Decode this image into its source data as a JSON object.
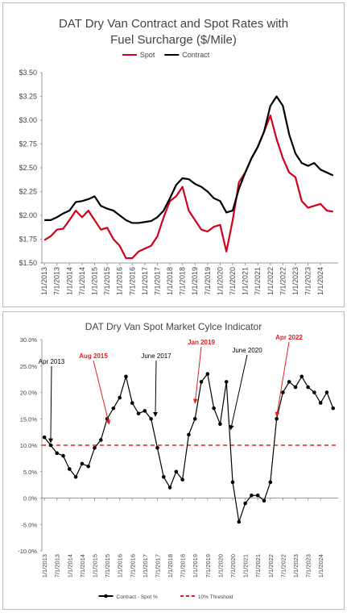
{
  "chart_data": [
    {
      "type": "line",
      "title": "DAT Dry Van Contract and Spot Rates with Fuel Surcharge ($/Mile)",
      "legend": "top",
      "grid": false,
      "x": [
        2013,
        2013.25,
        2013.5,
        2013.75,
        2014,
        2014.25,
        2014.5,
        2014.75,
        2015,
        2015.25,
        2015.5,
        2015.75,
        2016,
        2016.25,
        2016.5,
        2016.75,
        2017,
        2017.25,
        2017.5,
        2017.75,
        2018,
        2018.25,
        2018.5,
        2018.75,
        2019,
        2019.25,
        2019.5,
        2019.75,
        2020,
        2020.25,
        2020.5,
        2020.75,
        2021,
        2021.25,
        2021.5,
        2021.75,
        2022,
        2022.25,
        2022.5,
        2022.75,
        2023,
        2023.25,
        2023.5,
        2023.75,
        2024,
        2024.25,
        2024.5
      ],
      "series": [
        {
          "name": "Spot",
          "color": "#d0021b",
          "values": [
            1.74,
            1.78,
            1.85,
            1.86,
            1.95,
            2.05,
            1.98,
            2.05,
            1.95,
            1.85,
            1.87,
            1.75,
            1.68,
            1.55,
            1.55,
            1.62,
            1.65,
            1.68,
            1.78,
            1.98,
            2.15,
            2.2,
            2.3,
            2.05,
            1.95,
            1.85,
            1.83,
            1.88,
            1.9,
            1.62,
            1.95,
            2.35,
            2.45,
            2.6,
            2.72,
            2.88,
            3.05,
            2.8,
            2.6,
            2.45,
            2.4,
            2.15,
            2.08,
            2.1,
            2.12,
            2.05,
            2.04
          ]
        },
        {
          "name": "Contract",
          "color": "#000000",
          "values": [
            1.95,
            1.95,
            1.98,
            2.02,
            2.05,
            2.14,
            2.15,
            2.17,
            2.2,
            2.1,
            2.07,
            2.05,
            2.0,
            1.95,
            1.92,
            1.92,
            1.93,
            1.94,
            1.98,
            2.05,
            2.18,
            2.32,
            2.39,
            2.38,
            2.33,
            2.3,
            2.25,
            2.18,
            2.15,
            2.03,
            2.05,
            2.28,
            2.45,
            2.6,
            2.72,
            2.88,
            3.15,
            3.25,
            3.15,
            2.85,
            2.65,
            2.55,
            2.52,
            2.55,
            2.48,
            2.45,
            2.42
          ]
        }
      ],
      "xlim": [
        2012.9,
        2024.7
      ],
      "xticks": [
        {
          "value": 2013,
          "label": "1/1/2013"
        },
        {
          "value": 2013.5,
          "label": "7/1/2013"
        },
        {
          "value": 2014,
          "label": "1/1/2014"
        },
        {
          "value": 2014.5,
          "label": "7/1/2014"
        },
        {
          "value": 2015,
          "label": "1/1/2015"
        },
        {
          "value": 2015.5,
          "label": "7/1/2015"
        },
        {
          "value": 2016,
          "label": "1/1/2016"
        },
        {
          "value": 2016.5,
          "label": "7/1/2016"
        },
        {
          "value": 2017,
          "label": "1/1/2017"
        },
        {
          "value": 2017.5,
          "label": "7/1/2017"
        },
        {
          "value": 2018,
          "label": "1/1/2018"
        },
        {
          "value": 2018.5,
          "label": "7/1/2018"
        },
        {
          "value": 2019,
          "label": "1/1/2019"
        },
        {
          "value": 2019.5,
          "label": "7/1/2019"
        },
        {
          "value": 2020,
          "label": "1/1/2020"
        },
        {
          "value": 2020.5,
          "label": "7/1/2020"
        },
        {
          "value": 2021,
          "label": "1/1/2021"
        },
        {
          "value": 2021.5,
          "label": "7/1/2021"
        },
        {
          "value": 2022,
          "label": "1/1/2022"
        },
        {
          "value": 2022.5,
          "label": "7/1/2022"
        },
        {
          "value": 2023,
          "label": "1/1/2023"
        },
        {
          "value": 2023.5,
          "label": "7/1/2023"
        },
        {
          "value": 2024,
          "label": "1/1/2024"
        }
      ],
      "ylim": [
        1.5,
        3.5
      ],
      "yticks": [
        {
          "value": 1.5,
          "label": "$1.50"
        },
        {
          "value": 1.75,
          "label": "$1.75"
        },
        {
          "value": 2.0,
          "label": "$2.00"
        },
        {
          "value": 2.25,
          "label": "$2.25"
        },
        {
          "value": 2.5,
          "label": "$2.50"
        },
        {
          "value": 2.75,
          "label": "$2.75"
        },
        {
          "value": 3.0,
          "label": "$3.00"
        },
        {
          "value": 3.25,
          "label": "$3.25"
        },
        {
          "value": 3.5,
          "label": "$3.50"
        }
      ]
    },
    {
      "type": "line",
      "title": "DAT Dry Van Spot Market Cylce Indicator",
      "legend": "bottom",
      "grid": false,
      "markers": true,
      "x": [
        2013,
        2013.25,
        2013.5,
        2013.75,
        2014,
        2014.25,
        2014.5,
        2014.75,
        2015,
        2015.25,
        2015.5,
        2015.75,
        2016,
        2016.25,
        2016.5,
        2016.75,
        2017,
        2017.25,
        2017.5,
        2017.75,
        2018,
        2018.25,
        2018.5,
        2018.75,
        2019,
        2019.25,
        2019.5,
        2019.75,
        2020,
        2020.25,
        2020.5,
        2020.75,
        2021,
        2021.25,
        2021.5,
        2021.75,
        2022,
        2022.25,
        2022.5,
        2022.75,
        2023,
        2023.25,
        2023.5,
        2023.75,
        2024,
        2024.25,
        2024.5
      ],
      "series": [
        {
          "name": "Contract - Spot %",
          "color": "#000000",
          "values": [
            11.5,
            10.0,
            8.5,
            8.0,
            5.5,
            4.0,
            6.5,
            6.0,
            9.5,
            11.0,
            15.0,
            17.0,
            19.0,
            23.0,
            18.0,
            16.0,
            16.5,
            15.0,
            9.5,
            4.0,
            2.0,
            5.0,
            3.5,
            12.0,
            15.0,
            22.0,
            23.5,
            17.0,
            14.0,
            22.0,
            3.0,
            -4.5,
            -1.0,
            0.5,
            0.5,
            -0.5,
            3.0,
            15.0,
            20.0,
            22.0,
            21.0,
            23.0,
            21.0,
            20.0,
            18.0,
            20.0,
            17.0
          ]
        }
      ],
      "threshold": {
        "name": "10% Threshold",
        "value": 10,
        "color": "#e02020"
      },
      "annotations": [
        {
          "text": "Apr 2013",
          "x": 2013.25,
          "y": 10.0,
          "color": "#000000"
        },
        {
          "text": "Aug 2015",
          "x": 2015.58,
          "y": 13.5,
          "color": "#e02020"
        },
        {
          "text": "June 2017",
          "x": 2017.42,
          "y": 15.0,
          "color": "#000000"
        },
        {
          "text": "Jan 2019",
          "x": 2019.0,
          "y": 17.5,
          "color": "#e02020"
        },
        {
          "text": "June 2020",
          "x": 2020.42,
          "y": 12.5,
          "color": "#000000"
        },
        {
          "text": "Apr 2022",
          "x": 2022.25,
          "y": 15.0,
          "color": "#e02020"
        }
      ],
      "xlim": [
        2012.9,
        2024.7
      ],
      "xticks": [
        {
          "value": 2013,
          "label": "1/1/2013"
        },
        {
          "value": 2013.5,
          "label": "7/1/2013"
        },
        {
          "value": 2014,
          "label": "1/1/2014"
        },
        {
          "value": 2014.5,
          "label": "7/1/2014"
        },
        {
          "value": 2015,
          "label": "1/1/2015"
        },
        {
          "value": 2015.5,
          "label": "7/1/2015"
        },
        {
          "value": 2016,
          "label": "1/1/2016"
        },
        {
          "value": 2016.5,
          "label": "7/1/2016"
        },
        {
          "value": 2017,
          "label": "1/1/2017"
        },
        {
          "value": 2017.5,
          "label": "7/1/2017"
        },
        {
          "value": 2018,
          "label": "1/1/2018"
        },
        {
          "value": 2018.5,
          "label": "7/1/2018"
        },
        {
          "value": 2019,
          "label": "1/1/2019"
        },
        {
          "value": 2019.5,
          "label": "7/1/2019"
        },
        {
          "value": 2020,
          "label": "1/1/2020"
        },
        {
          "value": 2020.5,
          "label": "7/1/2020"
        },
        {
          "value": 2021,
          "label": "1/1/2021"
        },
        {
          "value": 2021.5,
          "label": "7/1/2021"
        },
        {
          "value": 2022,
          "label": "1/1/2022"
        },
        {
          "value": 2022.5,
          "label": "7/1/2022"
        },
        {
          "value": 2023,
          "label": "1/1/2023"
        },
        {
          "value": 2023.5,
          "label": "7/1/2023"
        },
        {
          "value": 2024,
          "label": "1/1/2024"
        }
      ],
      "ylim": [
        -10,
        30
      ],
      "yticks": [
        {
          "value": -10,
          "label": "-10.0%"
        },
        {
          "value": -5,
          "label": "-5.0%"
        },
        {
          "value": 0,
          "label": "0.0%"
        },
        {
          "value": 5,
          "label": "5.0%"
        },
        {
          "value": 10,
          "label": "10.0%"
        },
        {
          "value": 15,
          "label": "15.0%"
        },
        {
          "value": 20,
          "label": "20.0%"
        },
        {
          "value": 25,
          "label": "25.0%"
        },
        {
          "value": 30,
          "label": "30.0%"
        }
      ]
    }
  ]
}
